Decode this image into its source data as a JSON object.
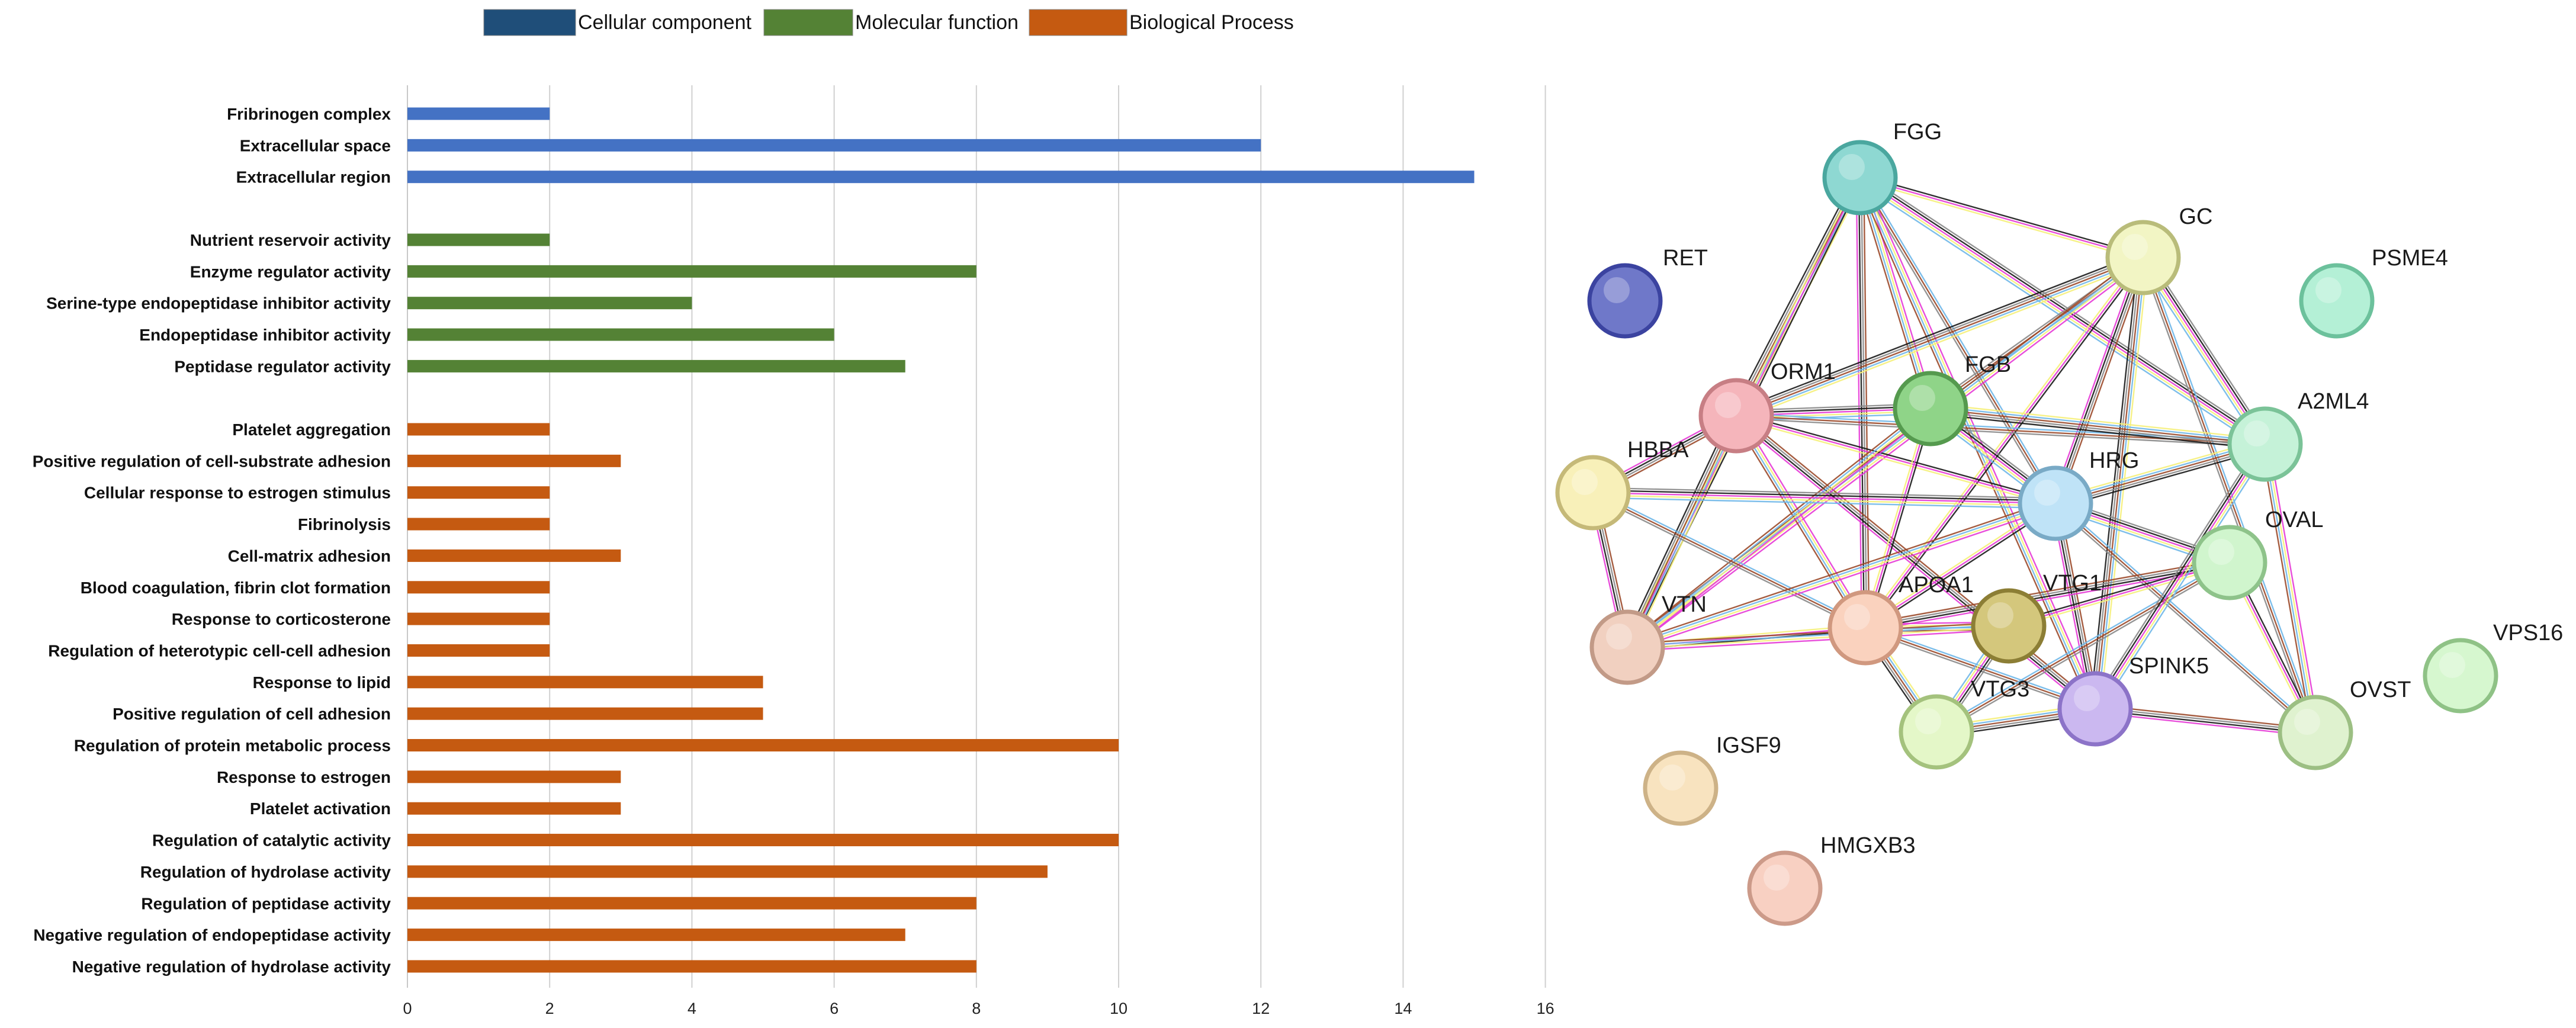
{
  "chart_data": {
    "type": "bar",
    "orientation": "horizontal",
    "title": "",
    "xlabel": "",
    "ylabel": "",
    "xlim": [
      0,
      16
    ],
    "xticks": [
      0,
      2,
      4,
      6,
      8,
      10,
      12,
      14,
      16
    ],
    "grid": true,
    "legend": {
      "placement": "top",
      "entries": [
        {
          "label": "Cellular component",
          "color": "#1f4e79"
        },
        {
          "label": "Molecular function",
          "color": "#548235"
        },
        {
          "label": "Biological Process",
          "color": "#c55a11"
        }
      ]
    },
    "groups": [
      {
        "name": "Cellular component",
        "bar_color": "#4472c4",
        "categories": [
          "Fribrinogen complex",
          "Extracellular space",
          "Extracellular region"
        ],
        "values": [
          2,
          12,
          15
        ]
      },
      {
        "name": "Molecular function",
        "bar_color": "#548235",
        "categories": [
          "Nutrient reservoir activity",
          "Enzyme regulator activity",
          "Serine-type endopeptidase inhibitor activity",
          "Endopeptidase inhibitor activity",
          "Peptidase regulator activity"
        ],
        "values": [
          2,
          8,
          4,
          6,
          7
        ]
      },
      {
        "name": "Biological Process",
        "bar_color": "#c55a11",
        "categories": [
          "Platelet aggregation",
          "Positive regulation of cell-substrate adhesion",
          "Cellular response to estrogen stimulus",
          "Fibrinolysis",
          "Cell-matrix adhesion",
          "Blood coagulation, fibrin clot formation",
          "Response to corticosterone",
          "Regulation of heterotypic cell-cell adhesion",
          "Response to lipid",
          "Positive regulation of cell adhesion",
          "Regulation of protein metabolic process",
          "Response to estrogen",
          "Platelet activation",
          "Regulation of catalytic activity",
          "Regulation of hydrolase activity",
          "Regulation of peptidase activity",
          "Negative regulation of endopeptidase activity",
          "Negative regulation of hydrolase activity"
        ],
        "values": [
          2,
          3,
          2,
          2,
          3,
          2,
          2,
          2,
          5,
          5,
          10,
          3,
          3,
          10,
          9,
          8,
          7,
          8
        ]
      }
    ]
  },
  "network": {
    "nodes": [
      {
        "id": "FGG",
        "color": "#8ed8d2",
        "border": "#4aa79f"
      },
      {
        "id": "GC",
        "color": "#f2f5c4",
        "border": "#b9bc7a"
      },
      {
        "id": "RET",
        "color": "#6f78c9",
        "border": "#3b43a0"
      },
      {
        "id": "PSME4",
        "color": "#b4f0d6",
        "border": "#6cc19c"
      },
      {
        "id": "ORM1",
        "color": "#f5b5bb",
        "border": "#c77e84"
      },
      {
        "id": "FGB",
        "color": "#8fd488",
        "border": "#559a4e"
      },
      {
        "id": "A2ML4",
        "color": "#c5f2d8",
        "border": "#7bc398"
      },
      {
        "id": "HBBA",
        "color": "#f8f0b9",
        "border": "#c5b978"
      },
      {
        "id": "HRG",
        "color": "#bfe3f7",
        "border": "#79aac6"
      },
      {
        "id": "OVAL",
        "color": "#d0f5cd",
        "border": "#8ec38a"
      },
      {
        "id": "VTN",
        "color": "#f1d0c0",
        "border": "#c29a87"
      },
      {
        "id": "APOA1",
        "color": "#fad2be",
        "border": "#d0987f"
      },
      {
        "id": "VTG1",
        "color": "#d4c77c",
        "border": "#8c7e35"
      },
      {
        "id": "VPS16",
        "color": "#d6f7cf",
        "border": "#8fc286"
      },
      {
        "id": "SPINK5",
        "color": "#cbb8f0",
        "border": "#8c73c8"
      },
      {
        "id": "VTG3",
        "color": "#e4f7c8",
        "border": "#a4c27d"
      },
      {
        "id": "OVST",
        "color": "#dff2cf",
        "border": "#9cbf83"
      },
      {
        "id": "IGSF9",
        "color": "#f8e3bf",
        "border": "#cdb287"
      },
      {
        "id": "HMGXB3",
        "color": "#f8d0c2",
        "border": "#cc9a89"
      }
    ],
    "edges": [
      [
        "FGG",
        "GC"
      ],
      [
        "FGG",
        "FGB"
      ],
      [
        "FGG",
        "ORM1"
      ],
      [
        "FGG",
        "HRG"
      ],
      [
        "FGG",
        "APOA1"
      ],
      [
        "FGG",
        "A2ML4"
      ],
      [
        "FGG",
        "VTN"
      ],
      [
        "FGG",
        "SPINK5"
      ],
      [
        "GC",
        "ORM1"
      ],
      [
        "GC",
        "FGB"
      ],
      [
        "GC",
        "HRG"
      ],
      [
        "GC",
        "A2ML4"
      ],
      [
        "GC",
        "APOA1"
      ],
      [
        "GC",
        "VTN"
      ],
      [
        "GC",
        "SPINK5"
      ],
      [
        "GC",
        "OVST"
      ],
      [
        "ORM1",
        "HBBA"
      ],
      [
        "ORM1",
        "FGB"
      ],
      [
        "ORM1",
        "HRG"
      ],
      [
        "ORM1",
        "APOA1"
      ],
      [
        "ORM1",
        "VTN"
      ],
      [
        "ORM1",
        "A2ML4"
      ],
      [
        "ORM1",
        "SPINK5"
      ],
      [
        "FGB",
        "HRG"
      ],
      [
        "FGB",
        "APOA1"
      ],
      [
        "FGB",
        "VTN"
      ],
      [
        "FGB",
        "A2ML4"
      ],
      [
        "HBBA",
        "APOA1"
      ],
      [
        "HBBA",
        "VTN"
      ],
      [
        "HBBA",
        "HRG"
      ],
      [
        "HRG",
        "APOA1"
      ],
      [
        "HRG",
        "VTN"
      ],
      [
        "HRG",
        "A2ML4"
      ],
      [
        "HRG",
        "OVST"
      ],
      [
        "HRG",
        "SPINK5"
      ],
      [
        "HRG",
        "OVAL"
      ],
      [
        "APOA1",
        "VTN"
      ],
      [
        "APOA1",
        "VTG1"
      ],
      [
        "APOA1",
        "VTG3"
      ],
      [
        "APOA1",
        "SPINK5"
      ],
      [
        "APOA1",
        "OVAL"
      ],
      [
        "VTG1",
        "VTG3"
      ],
      [
        "VTG1",
        "OVAL"
      ],
      [
        "VTG1",
        "VTN"
      ],
      [
        "VTG3",
        "SPINK5"
      ],
      [
        "VTG3",
        "OVAL"
      ],
      [
        "SPINK5",
        "OVST"
      ],
      [
        "SPINK5",
        "A2ML4"
      ],
      [
        "OVAL",
        "OVST"
      ],
      [
        "A2ML4",
        "OVST"
      ]
    ]
  }
}
